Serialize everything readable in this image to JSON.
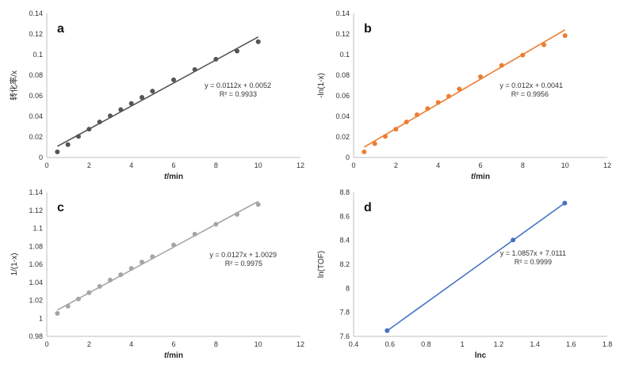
{
  "chart_data": [
    {
      "type": "scatter",
      "panel_label": "a",
      "color": "#555555",
      "xlim": [
        0,
        12
      ],
      "ylim": [
        0,
        0.14
      ],
      "xticks": [
        "0",
        "2",
        "4",
        "6",
        "8",
        "10",
        "12"
      ],
      "yticks": [
        "0",
        "0.02",
        "0.04",
        "0.06",
        "0.08",
        "0.1",
        "0.12",
        "0.14"
      ],
      "xlabel_italic": "t",
      "xlabel_rest": "/min",
      "ylabel": "转化率/x",
      "x": [
        0.5,
        1,
        1.5,
        2,
        2.5,
        3,
        3.5,
        4,
        4.5,
        5,
        6,
        7,
        8,
        9,
        10
      ],
      "y": [
        0.0055,
        0.0125,
        0.0205,
        0.0275,
        0.0345,
        0.0405,
        0.0465,
        0.0525,
        0.0585,
        0.0645,
        0.0755,
        0.0855,
        0.0955,
        0.1035,
        0.1125
      ],
      "fit": {
        "slope": 0.0112,
        "intercept": 0.0052,
        "x_range": [
          0.5,
          10
        ]
      },
      "equation": "y = 0.0112x + 0.0052",
      "r2": "R² = 0.9933"
    },
    {
      "type": "scatter",
      "panel_label": "b",
      "color": "#ED7D31",
      "xlim": [
        0,
        12
      ],
      "ylim": [
        0,
        0.14
      ],
      "xticks": [
        "0",
        "2",
        "4",
        "6",
        "8",
        "10",
        "12"
      ],
      "yticks": [
        "0",
        "0.02",
        "0.04",
        "0.06",
        "0.08",
        "0.1",
        "0.12",
        "0.14"
      ],
      "xlabel_italic": "t",
      "xlabel_rest": "/min",
      "ylabel": "-ln(1-x)",
      "x": [
        0.5,
        1,
        1.5,
        2,
        2.5,
        3,
        3.5,
        4,
        4.5,
        5,
        6,
        7,
        8,
        9,
        10
      ],
      "y": [
        0.0055,
        0.0135,
        0.0205,
        0.0275,
        0.0345,
        0.0415,
        0.0475,
        0.0535,
        0.0595,
        0.0665,
        0.0785,
        0.0895,
        0.0995,
        0.1095,
        0.1185
      ],
      "fit": {
        "slope": 0.012,
        "intercept": 0.0041,
        "x_range": [
          0.5,
          10
        ]
      },
      "equation": "y = 0.012x + 0.0041",
      "r2": "R² = 0.9956"
    },
    {
      "type": "scatter",
      "panel_label": "c",
      "color": "#A5A5A5",
      "xlim": [
        0,
        12
      ],
      "ylim": [
        0.98,
        1.14
      ],
      "xticks": [
        "0",
        "2",
        "4",
        "6",
        "8",
        "10",
        "12"
      ],
      "yticks": [
        "0.98",
        "1",
        "1.02",
        "1.04",
        "1.06",
        "1.08",
        "1.1",
        "1.12",
        "1.14"
      ],
      "xlabel_italic": "t",
      "xlabel_rest": "/min",
      "ylabel": "1/(1-x)",
      "x": [
        0.5,
        1,
        1.5,
        2,
        2.5,
        3,
        3.5,
        4,
        4.5,
        5,
        6,
        7,
        8,
        9,
        10
      ],
      "y": [
        1.0055,
        1.0135,
        1.0215,
        1.0285,
        1.0355,
        1.0425,
        1.0485,
        1.0555,
        1.0625,
        1.0685,
        1.0815,
        1.0935,
        1.1045,
        1.1155,
        1.1265
      ],
      "fit": {
        "slope": 0.0127,
        "intercept": 1.0029,
        "x_range": [
          0.5,
          10
        ]
      },
      "equation": "y = 0.0127x + 1.0029",
      "r2": "R² = 0.9975"
    },
    {
      "type": "line",
      "panel_label": "d",
      "color": "#4472C4",
      "xlim": [
        0.4,
        1.8
      ],
      "ylim": [
        7.6,
        8.8
      ],
      "xticks": [
        "0.4",
        "0.6",
        "0.8",
        "1",
        "1.2",
        "1.4",
        "1.6",
        "1.8"
      ],
      "yticks": [
        "7.6",
        "7.8",
        "8",
        "8.2",
        "8.4",
        "8.6",
        "8.8"
      ],
      "xlabel_italic": "",
      "xlabel_rest": "lnc",
      "ylabel": "ln(TOF)",
      "x": [
        0.585,
        1.28,
        1.565
      ],
      "y": [
        7.648,
        8.403,
        8.71
      ],
      "fit": {
        "slope": 1.0857,
        "intercept": 7.0111,
        "x_range": [
          0.585,
          1.565
        ]
      },
      "equation": "y = 1.0857x + 7.0111",
      "r2": "R² = 0.9999"
    }
  ]
}
